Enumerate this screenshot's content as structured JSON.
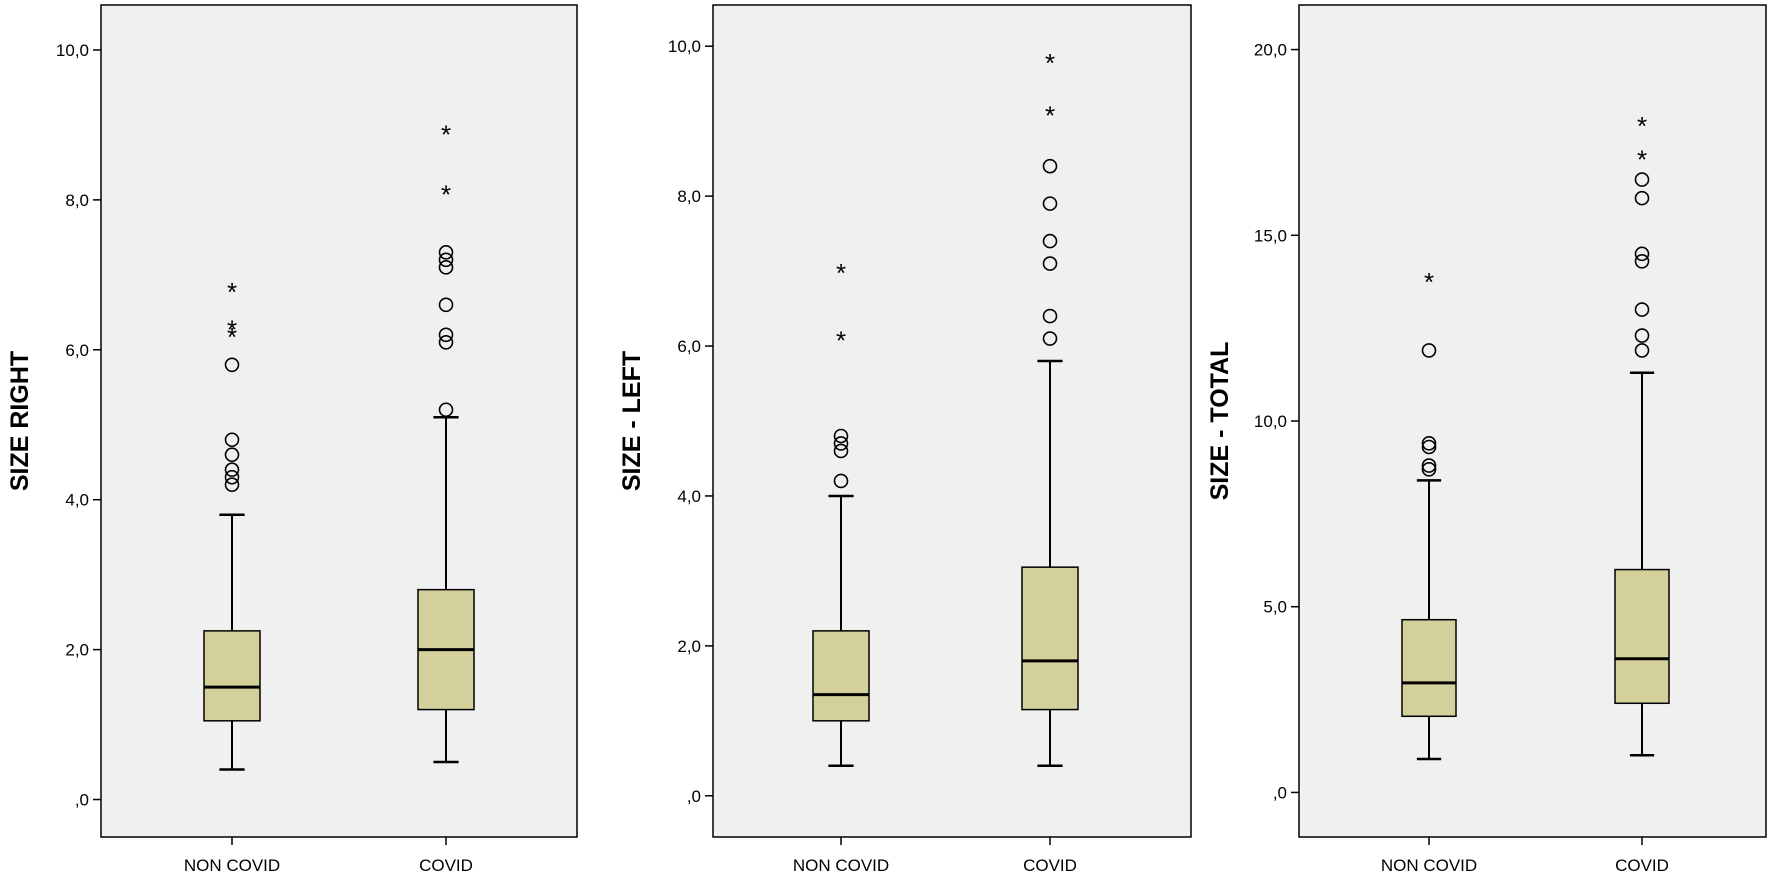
{
  "chart_data": [
    {
      "type": "box",
      "ylabel": "SIZE RIGHT",
      "ylim": [
        -0.5,
        10.6
      ],
      "yticks": [
        0,
        2,
        4,
        6,
        8,
        10
      ],
      "ytick_labels": [
        ",0",
        "2,0",
        "4,0",
        "6,0",
        "8,0",
        "10,0"
      ],
      "categories": [
        "NON COVID",
        "COVID"
      ],
      "box_fill": "#d4d09c",
      "background": "#f0f0f0",
      "boxes": [
        {
          "category": "NON COVID",
          "min": 0.4,
          "q1": 1.05,
          "median": 1.5,
          "q3": 2.25,
          "max": 3.8,
          "outliers": [
            4.2,
            4.3,
            4.4,
            4.6,
            4.8,
            5.8
          ],
          "extremes": [
            6.2,
            6.3,
            6.8
          ]
        },
        {
          "category": "COVID",
          "min": 0.5,
          "q1": 1.2,
          "median": 2.0,
          "q3": 2.8,
          "max": 5.1,
          "outliers": [
            5.2,
            6.1,
            6.2,
            6.6,
            7.1,
            7.2,
            7.3
          ],
          "extremes": [
            8.1,
            8.9
          ]
        }
      ]
    },
    {
      "type": "box",
      "ylabel": "SIZE - LEFT",
      "ylim": [
        -0.55,
        10.55
      ],
      "yticks": [
        0,
        2,
        4,
        6,
        8,
        10
      ],
      "ytick_labels": [
        ",0",
        "2,0",
        "4,0",
        "6,0",
        "8,0",
        "10,0"
      ],
      "categories": [
        "NON COVID",
        "COVID"
      ],
      "box_fill": "#d4d09c",
      "background": "#f0f0f0",
      "boxes": [
        {
          "category": "NON COVID",
          "min": 0.4,
          "q1": 1.0,
          "median": 1.35,
          "q3": 2.2,
          "max": 4.0,
          "outliers": [
            4.2,
            4.6,
            4.7,
            4.8
          ],
          "extremes": [
            6.1,
            7.0
          ]
        },
        {
          "category": "COVID",
          "min": 0.4,
          "q1": 1.15,
          "median": 1.8,
          "q3": 3.05,
          "max": 5.8,
          "outliers": [
            6.1,
            6.4,
            7.1,
            7.4,
            7.9,
            8.4
          ],
          "extremes": [
            9.1,
            9.8
          ]
        }
      ]
    },
    {
      "type": "box",
      "ylabel": "SIZE - TOTAL",
      "ylim": [
        -1.2,
        21.2
      ],
      "yticks": [
        0,
        5,
        10,
        15,
        20
      ],
      "ytick_labels": [
        ",0",
        "5,0",
        "10,0",
        "15,0",
        "20,0"
      ],
      "categories": [
        "NON COVID",
        "COVID"
      ],
      "box_fill": "#d4d09c",
      "background": "#f0f0f0",
      "boxes": [
        {
          "category": "NON COVID",
          "min": 0.9,
          "q1": 2.05,
          "median": 2.95,
          "q3": 4.65,
          "max": 8.4,
          "outliers": [
            8.7,
            8.8,
            9.3,
            9.4,
            11.9
          ],
          "extremes": [
            13.8
          ]
        },
        {
          "category": "COVID",
          "min": 1.0,
          "q1": 2.4,
          "median": 3.6,
          "q3": 6.0,
          "max": 11.3,
          "outliers": [
            11.9,
            12.3,
            13.0,
            14.3,
            14.5,
            16.0,
            16.5
          ],
          "extremes": [
            17.1,
            18.0
          ]
        }
      ]
    }
  ]
}
